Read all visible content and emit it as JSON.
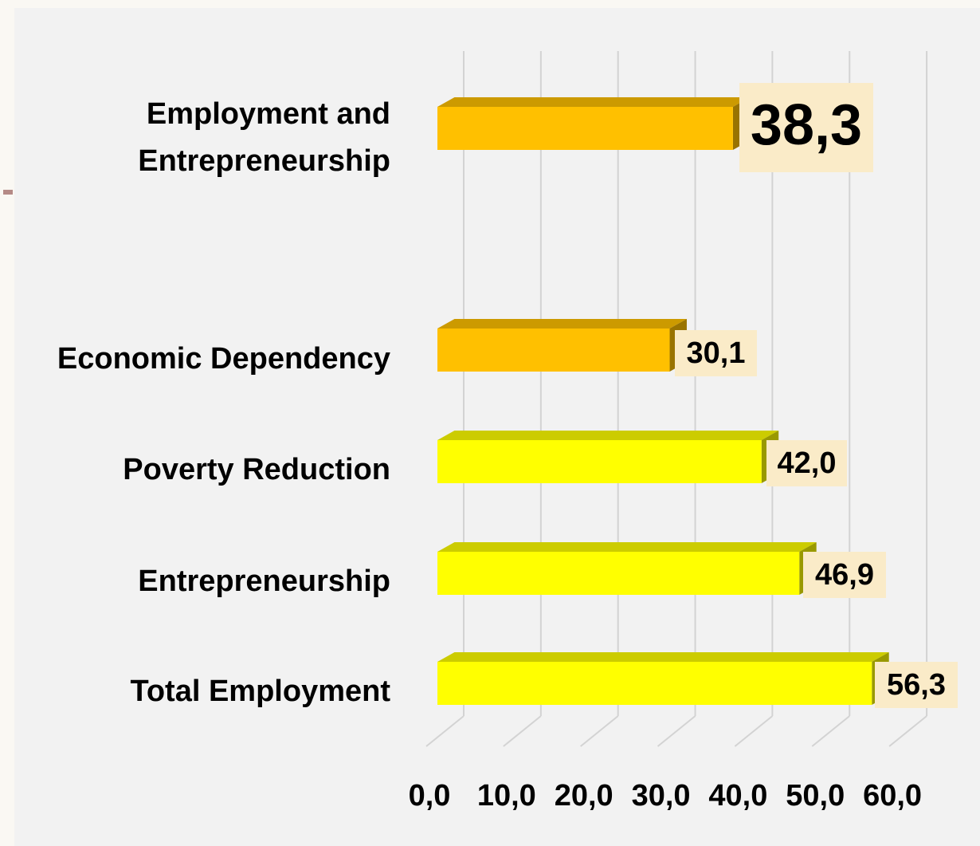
{
  "chart_data": {
    "type": "bar",
    "orientation": "horizontal",
    "categories": [
      "Employment and Entrepreneurship",
      "Economic Dependency",
      "Poverty Reduction",
      "Entrepreneurship",
      "Total Employment"
    ],
    "category_lines": [
      [
        "Employment and",
        "Entrepreneurship"
      ],
      [
        "Economic Dependency"
      ],
      [
        "Poverty Reduction"
      ],
      [
        "Entrepreneurship"
      ],
      [
        "Total Employment"
      ]
    ],
    "values": [
      38.3,
      30.1,
      42.0,
      46.9,
      56.3
    ],
    "value_labels": [
      "38,3",
      "30,1",
      "42,0",
      "46,9",
      "56,3"
    ],
    "bar_colors": [
      "#ffc000",
      "#ffc000",
      "#ffff00",
      "#ffff00",
      "#ffff00"
    ],
    "x_ticks": [
      "0,0",
      "10,0",
      "20,0",
      "30,0",
      "40,0",
      "50,0",
      "60,0"
    ],
    "xlim": [
      0,
      60
    ],
    "grid": true,
    "legend": "none",
    "title": "",
    "xlabel": "",
    "ylabel": ""
  },
  "colors": {
    "highlight_bar": "#ffc000",
    "bar": "#ffff00",
    "label_box": "#faebc8",
    "panel_background": "#f2f2f2"
  }
}
